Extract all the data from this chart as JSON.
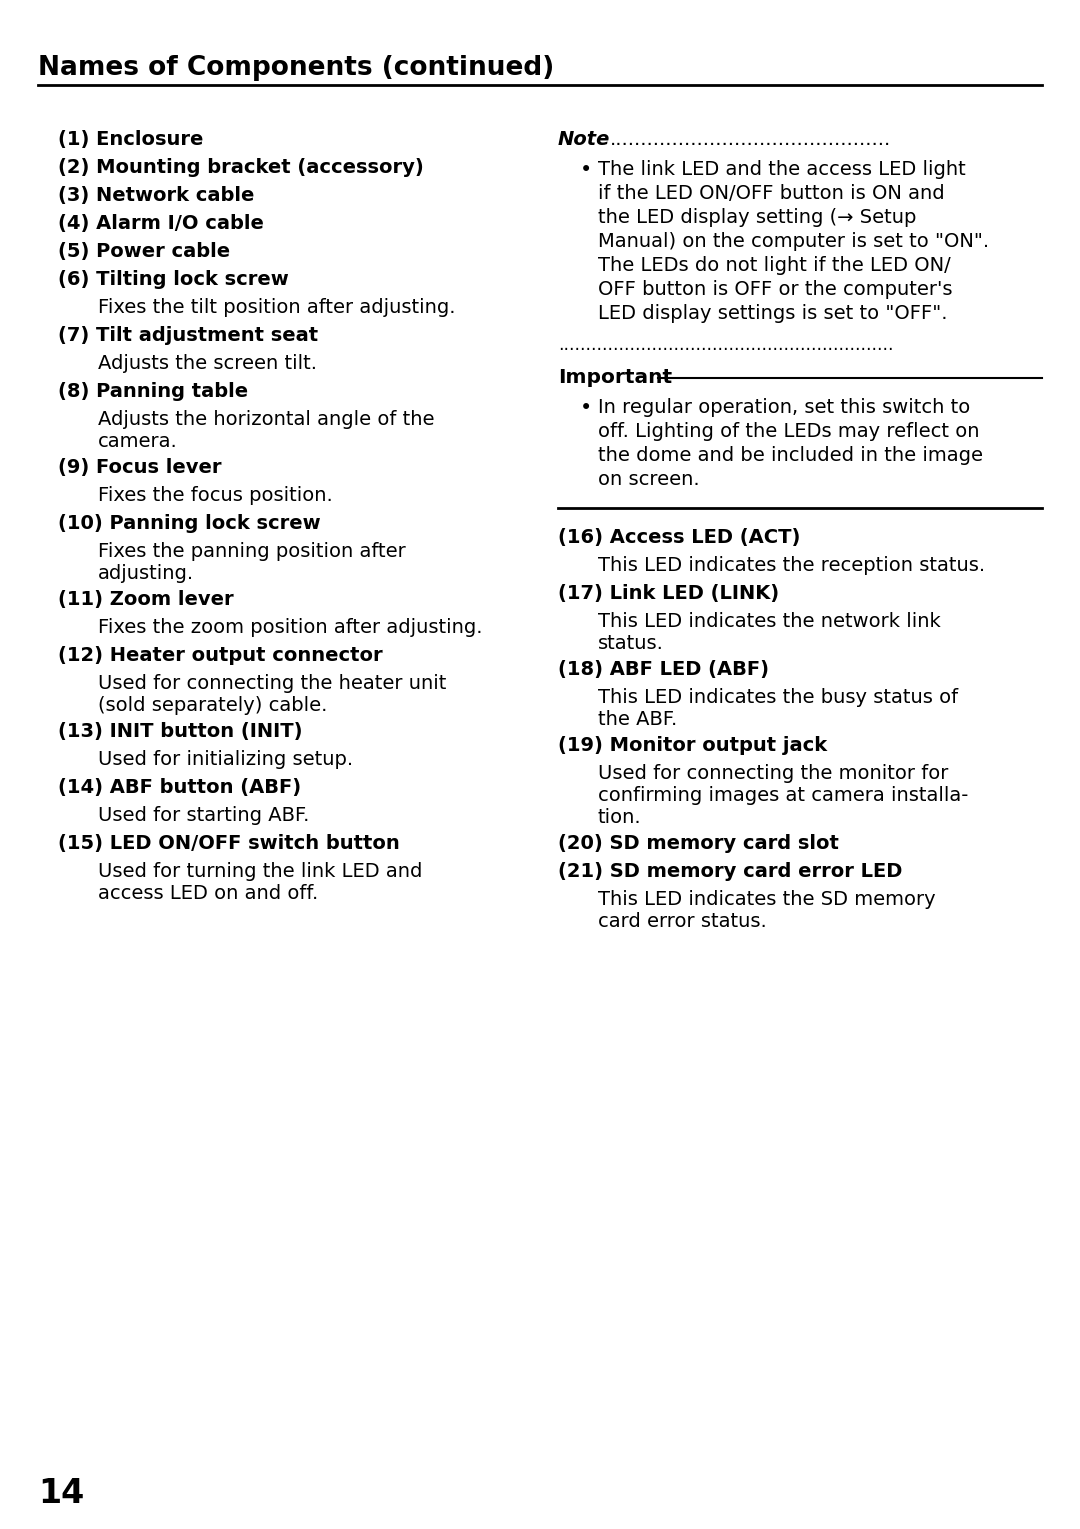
{
  "title": "Names of Components (continued)",
  "bg_color": "#ffffff",
  "text_color": "#000000",
  "page_number": "14",
  "left_column": [
    {
      "type": "bold",
      "text": "(1) Enclosure"
    },
    {
      "type": "bold",
      "text": "(2) Mounting bracket (accessory)"
    },
    {
      "type": "bold",
      "text": "(3) Network cable"
    },
    {
      "type": "bold",
      "text": "(4) Alarm I/O cable"
    },
    {
      "type": "bold",
      "text": "(5) Power cable"
    },
    {
      "type": "bold",
      "text": "(6) Tilting lock screw"
    },
    {
      "type": "normal",
      "text": "Fixes the tilt position after adjusting."
    },
    {
      "type": "bold",
      "text": "(7) Tilt adjustment seat"
    },
    {
      "type": "normal",
      "text": "Adjusts the screen tilt."
    },
    {
      "type": "bold",
      "text": "(8) Panning table"
    },
    {
      "type": "normal_2line",
      "text": "Adjusts the horizontal angle of the",
      "text2": "camera."
    },
    {
      "type": "bold",
      "text": "(9) Focus lever"
    },
    {
      "type": "normal",
      "text": "Fixes the focus position."
    },
    {
      "type": "bold",
      "text": "(10) Panning lock screw"
    },
    {
      "type": "normal_2line",
      "text": "Fixes the panning position after",
      "text2": "adjusting."
    },
    {
      "type": "bold",
      "text": "(11) Zoom lever"
    },
    {
      "type": "normal",
      "text": "Fixes the zoom position after adjusting."
    },
    {
      "type": "bold",
      "text": "(12) Heater output connector"
    },
    {
      "type": "normal_2line",
      "text": "Used for connecting the heater unit",
      "text2": "(sold separately) cable."
    },
    {
      "type": "bold",
      "text": "(13) INIT button (INIT)"
    },
    {
      "type": "normal",
      "text": "Used for initializing setup."
    },
    {
      "type": "bold",
      "text": "(14) ABF button (ABF)"
    },
    {
      "type": "normal",
      "text": "Used for starting ABF."
    },
    {
      "type": "bold",
      "text": "(15) LED ON/OFF switch button"
    },
    {
      "type": "normal_2line",
      "text": "Used for turning the link LED and",
      "text2": "access LED on and off."
    }
  ],
  "note_lines": [
    "The link LED and the access LED light",
    "if the LED ON/OFF button is ON and",
    "the LED display setting (→ Setup",
    "Manual) on the computer is set to \"ON\".",
    "The LEDs do not light if the LED ON/",
    "OFF button is OFF or the computer's",
    "LED display settings is set to \"OFF\"."
  ],
  "important_lines": [
    "In regular operation, set this switch to",
    "off. Lighting of the LEDs may reflect on",
    "the dome and be included in the image",
    "on screen."
  ],
  "right_column_items": [
    {
      "type": "bold",
      "text": "(16) Access LED (ACT)"
    },
    {
      "type": "normal",
      "text": "This LED indicates the reception status."
    },
    {
      "type": "bold",
      "text": "(17) Link LED (LINK)"
    },
    {
      "type": "normal_2line",
      "text": "This LED indicates the network link",
      "text2": "status."
    },
    {
      "type": "bold",
      "text": "(18) ABF LED (ABF)"
    },
    {
      "type": "normal_2line",
      "text": "This LED indicates the busy status of",
      "text2": "the ABF."
    },
    {
      "type": "bold",
      "text": "(19) Monitor output jack"
    },
    {
      "type": "normal_3line",
      "text": "Used for connecting the monitor for",
      "text2": "confirming images at camera installa-",
      "text3": "tion."
    },
    {
      "type": "bold",
      "text": "(20) SD memory card slot"
    },
    {
      "type": "bold",
      "text": "(21) SD memory card error LED"
    },
    {
      "type": "normal_2line",
      "text": "This LED indicates the SD memory",
      "text2": "card error status."
    }
  ]
}
